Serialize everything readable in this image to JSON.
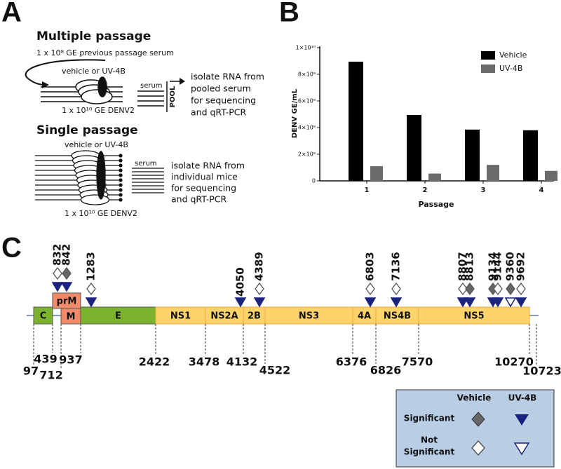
{
  "panel_labels": [
    "A",
    "B",
    "C"
  ],
  "panel_a": {
    "multiple": {
      "title": "Multiple passage",
      "serum_dose": "1 x 10⁸ GE previous passage serum",
      "treatment": "vehicle or UV-4B",
      "serum": "serum",
      "pool": "POOL",
      "inoculum": "1 x 10¹⁰ GE DENV2",
      "outcome": [
        "isolate RNA from",
        "pooled serum",
        "for sequencing",
        "and qRT-PCR"
      ]
    },
    "single": {
      "title": "Single passage",
      "treatment": "vehicle or UV-4B",
      "serum": "serum",
      "inoculum": "1 x 10¹⁰ GE DENV2",
      "outcome": [
        "isolate RNA from",
        "individual mice",
        "for sequencing",
        "and qRT-PCR"
      ]
    }
  },
  "chart_data": {
    "type": "bar",
    "categories": [
      "1",
      "2",
      "3",
      "4"
    ],
    "x_label": "Passage",
    "y_label": "DENV GE/mL",
    "series": [
      {
        "name": "Vehicle",
        "color": "#000000",
        "values": [
          8950000000,
          4950000000,
          3850000000,
          3800000000
        ]
      },
      {
        "name": "UV-4B",
        "color": "#6b6b6b",
        "values": [
          1100000000,
          550000000,
          1200000000,
          750000000
        ]
      }
    ],
    "ylim": [
      0,
      10000000000
    ],
    "yticks": [
      0,
      {
        "value": 2000000000,
        "label": "2×10⁹"
      },
      {
        "value": 4000000000,
        "label": "4×10⁹"
      },
      {
        "value": 6000000000,
        "label": "6×10⁹"
      },
      {
        "value": 8000000000,
        "label": "8×10⁹"
      },
      {
        "value": 10000000000,
        "label": "1×10¹⁰"
      }
    ],
    "legend": "upper right"
  },
  "panel_c": {
    "genes": [
      {
        "name": "C",
        "color": "#7cb32e"
      },
      {
        "name": "prM",
        "color": "#f08a6a"
      },
      {
        "name": "M",
        "color": "#f08a6a"
      },
      {
        "name": "E",
        "color": "#7cb32e"
      },
      {
        "name": "NS1",
        "color": "#fdd36a"
      },
      {
        "name": "NS2A",
        "color": "#fdd36a"
      },
      {
        "name": "2B",
        "color": "#fdd36a"
      },
      {
        "name": "NS3",
        "color": "#fdd36a"
      },
      {
        "name": "4A",
        "color": "#fdd36a"
      },
      {
        "name": "NS4B",
        "color": "#fdd36a"
      },
      {
        "name": "NS5",
        "color": "#fdd36a"
      }
    ],
    "boundaries": [
      97,
      439,
      712,
      937,
      2422,
      3478,
      4132,
      4522,
      6376,
      6826,
      7570,
      10270,
      10723
    ],
    "mutations": [
      {
        "position": 832,
        "vehicle_significant": false,
        "uv4b_significant": true
      },
      {
        "position": 842,
        "vehicle_significant": true,
        "uv4b_significant": true
      },
      {
        "position": 1283,
        "vehicle_significant": false,
        "uv4b_significant": true
      },
      {
        "position": 4050,
        "vehicle_significant": null,
        "uv4b_significant": true
      },
      {
        "position": 4389,
        "vehicle_significant": false,
        "uv4b_significant": true
      },
      {
        "position": 6803,
        "vehicle_significant": false,
        "uv4b_significant": true
      },
      {
        "position": 7136,
        "vehicle_significant": false,
        "uv4b_significant": true
      },
      {
        "position": 8807,
        "vehicle_significant": false,
        "uv4b_significant": true
      },
      {
        "position": 8813,
        "vehicle_significant": true,
        "uv4b_significant": true
      },
      {
        "position": 9134,
        "vehicle_significant": true,
        "uv4b_significant": true
      },
      {
        "position": 9144,
        "vehicle_significant": false,
        "uv4b_significant": true
      },
      {
        "position": 9360,
        "vehicle_significant": true,
        "uv4b_significant": false
      },
      {
        "position": 9692,
        "vehicle_significant": false,
        "uv4b_significant": true
      }
    ],
    "legend": {
      "columns": [
        "Vehicle",
        "UV-4B"
      ],
      "rows": [
        [
          "Significant"
        ],
        [
          "Not",
          "Significant"
        ]
      ]
    }
  }
}
